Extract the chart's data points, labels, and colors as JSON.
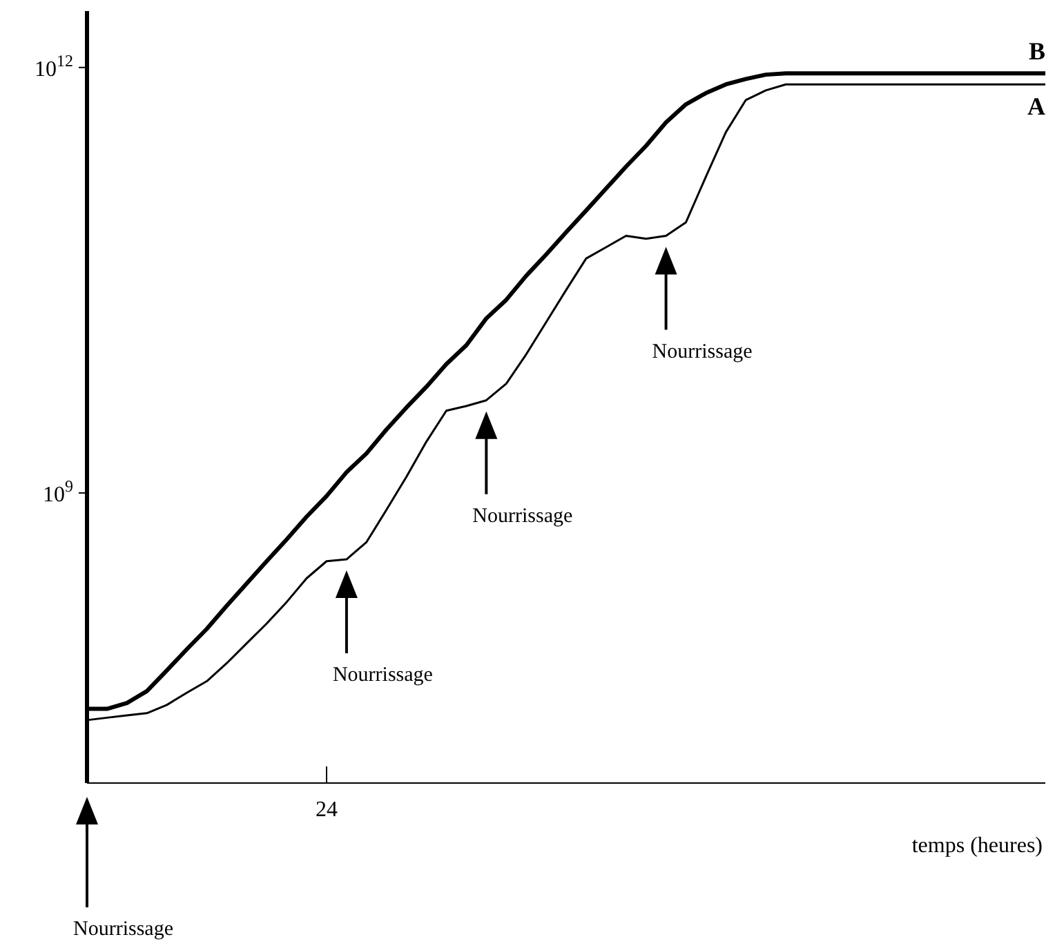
{
  "chart_data": {
    "type": "line",
    "xlabel": "temps (heures)",
    "log": "y",
    "grid": false,
    "legend": false,
    "marker": "none",
    "categories": [
      null,
      null,
      null,
      null,
      null,
      null,
      null,
      null,
      null,
      null,
      null,
      null,
      "24",
      null,
      null,
      null,
      null,
      null,
      null,
      null,
      null,
      null,
      null,
      null,
      null,
      null,
      null,
      null,
      null,
      null,
      null,
      null,
      null,
      null,
      null,
      null,
      null,
      null,
      null,
      null,
      null,
      null,
      null,
      null,
      null,
      null,
      null,
      null,
      null
    ],
    "ylim": [
      9000000,
      2500000000000
    ],
    "yticks": [
      {
        "value": 1000000000,
        "label": "10$^{9}$"
      },
      {
        "value": 1000000000000,
        "label": "10$^{12}$"
      }
    ],
    "series": [
      {
        "name": "B",
        "color": "#000000",
        "values": [
          30000000,
          30000000,
          33000000,
          40000000,
          56000000,
          79000000,
          110000000,
          160000000,
          230000000,
          330000000,
          470000000,
          680000000,
          950000000,
          1400000000,
          1900000000,
          2800000000,
          4000000000,
          5600000000,
          8100000000,
          11000000000,
          17000000000,
          23000000000,
          34000000000,
          48000000000,
          69000000000,
          98000000000,
          140000000000,
          200000000000,
          280000000000,
          410000000000,
          550000000000,
          660000000000,
          760000000000,
          830000000000,
          890000000000,
          910000000000,
          910000000000,
          910000000000,
          910000000000,
          910000000000,
          910000000000,
          910000000000,
          910000000000,
          910000000000,
          910000000000,
          910000000000,
          910000000000,
          910000000000,
          910000000000
        ]
      },
      {
        "name": "A",
        "color": "#000000",
        "values": [
          25000000,
          26000000,
          27000000,
          28000000,
          32000000,
          39000000,
          47000000,
          63000000,
          87000000,
          120000000,
          170000000,
          250000000,
          330000000,
          340000000,
          450000000,
          760000000,
          1300000000,
          2300000000,
          3800000000,
          4100000000,
          4500000000,
          5900000000,
          9500000000,
          16000000000,
          27000000000,
          45000000000,
          54000000000,
          65000000000,
          62000000000,
          65000000000,
          81000000000,
          170000000000,
          350000000000,
          590000000000,
          690000000000,
          760000000000,
          760000000000,
          760000000000,
          760000000000,
          760000000000,
          760000000000,
          760000000000,
          760000000000,
          760000000000,
          760000000000,
          760000000000,
          760000000000,
          760000000000,
          760000000000
        ]
      }
    ],
    "annotations": [
      "Nourrissage",
      "Nourrissage",
      "Nourrissage",
      "Nourrissage"
    ]
  }
}
